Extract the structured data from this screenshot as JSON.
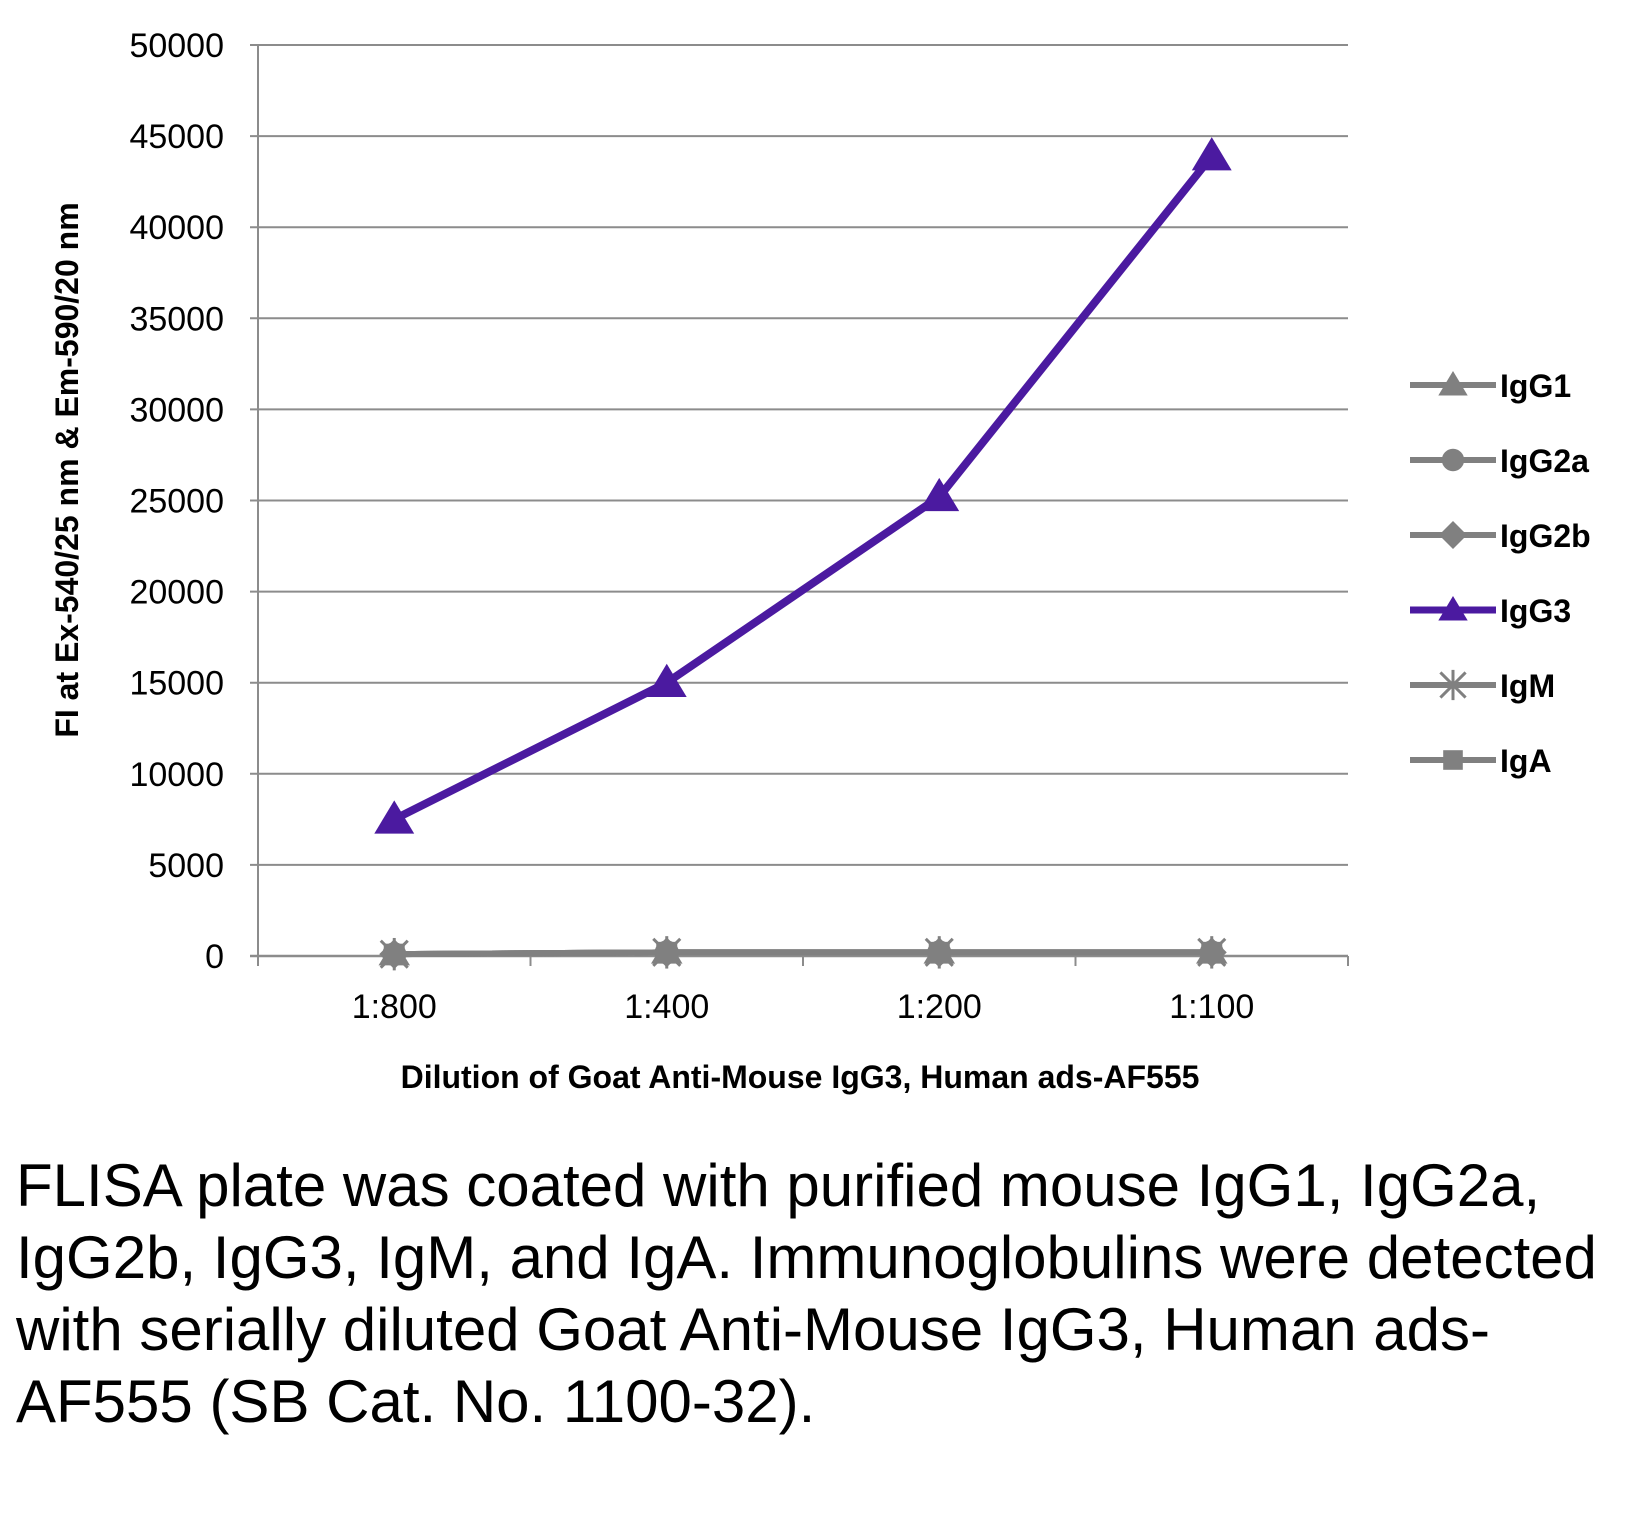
{
  "chart_data": {
    "type": "line",
    "categories": [
      "1:800",
      "1:400",
      "1:200",
      "1:100"
    ],
    "xlabel": "Dilution of Goat Anti-Mouse IgG3, Human ads-AF555",
    "ylabel": "FI at Ex-540/25 nm & Em-590/20 nm",
    "ylim": [
      0,
      50000
    ],
    "yticks": [
      0,
      5000,
      10000,
      15000,
      20000,
      25000,
      30000,
      35000,
      40000,
      45000,
      50000
    ],
    "grid": true,
    "legend_position": "right",
    "series": [
      {
        "name": "IgG1",
        "marker": "triangle",
        "color": "#808080",
        "values": [
          100,
          200,
          200,
          200
        ]
      },
      {
        "name": "IgG2a",
        "marker": "circle",
        "color": "#808080",
        "values": [
          100,
          200,
          200,
          200
        ]
      },
      {
        "name": "IgG2b",
        "marker": "diamond",
        "color": "#808080",
        "values": [
          100,
          200,
          200,
          200
        ]
      },
      {
        "name": "IgG3",
        "marker": "triangle",
        "color": "#4b1aa0",
        "values": [
          7500,
          15000,
          25200,
          43900
        ]
      },
      {
        "name": "IgM",
        "marker": "star",
        "color": "#808080",
        "values": [
          100,
          200,
          200,
          200
        ]
      },
      {
        "name": "IgA",
        "marker": "square",
        "color": "#808080",
        "values": [
          100,
          200,
          200,
          200
        ]
      }
    ]
  },
  "caption": "FLISA plate was coated with purified mouse IgG1, IgG2a, IgG2b, IgG3, IgM, and IgA. Immunoglobulins were detected with serially diluted Goat Anti-Mouse IgG3, Human ads-AF555 (SB Cat. No. 1100-32)."
}
